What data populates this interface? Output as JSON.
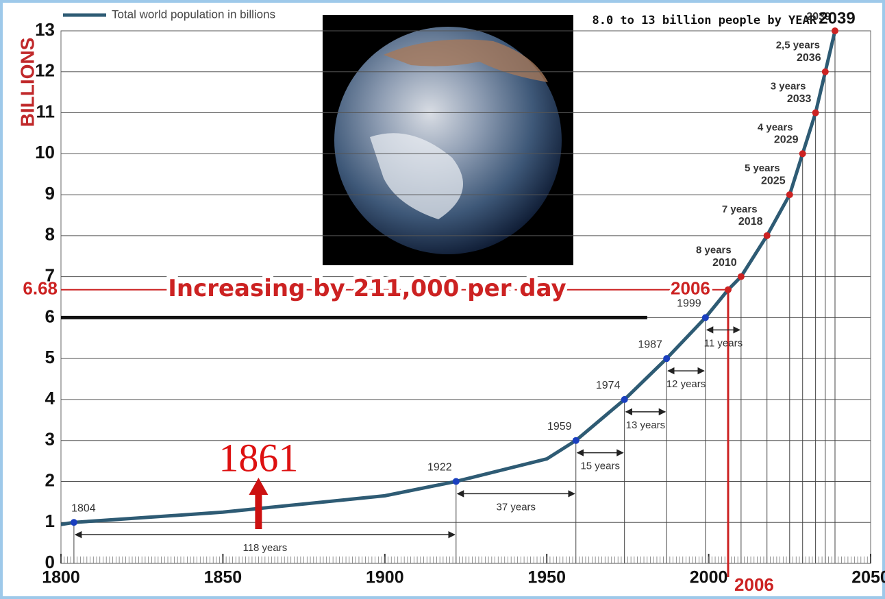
{
  "chart_data": {
    "type": "line",
    "title": "8.0 to 13 billion people by YEAR",
    "ylabel": "BILLIONS",
    "xlim": [
      1800,
      2050
    ],
    "ylim": [
      0,
      13
    ],
    "xticks": [
      1800,
      1850,
      1900,
      1950,
      2000,
      2050
    ],
    "yticks": [
      0,
      1,
      2,
      3,
      4,
      5,
      6,
      7,
      8,
      9,
      10,
      11,
      12,
      13
    ],
    "grid": true,
    "legend": "top-left",
    "series": [
      {
        "name": "Total world population in billions",
        "color": "#2e5b74",
        "x": [
          1800,
          1804,
          1850,
          1900,
          1922,
          1950,
          1959,
          1974,
          1987,
          1999,
          2006,
          2010,
          2018,
          2025,
          2029,
          2033,
          2036,
          2039
        ],
        "values": [
          0.95,
          1,
          1.25,
          1.65,
          2,
          2.55,
          3,
          4,
          5,
          6,
          6.68,
          7,
          8,
          9,
          10,
          11,
          12,
          13
        ],
        "marker_colors": [
          null,
          "#1a3fbf",
          null,
          null,
          "#1a3fbf",
          null,
          "#1a3fbf",
          "#1a3fbf",
          "#1a3fbf",
          "#1a3fbf",
          "#cc2222",
          "#cc2222",
          "#cc2222",
          "#cc2222",
          "#cc2222",
          "#cc2222",
          "#cc2222",
          "#cc2222"
        ]
      }
    ],
    "intervals": [
      {
        "label": "118 years",
        "from": 1,
        "to": 4
      },
      {
        "label": "37 years",
        "from": 4,
        "to": 6
      },
      {
        "label": "15 years",
        "from": 6,
        "to": 7
      },
      {
        "label": "13 years",
        "from": 7,
        "to": 8
      },
      {
        "label": "12 years",
        "from": 8,
        "to": 9
      },
      {
        "label": "11 years",
        "from": 9,
        "to": 11
      },
      {
        "label": "8 years",
        "from": 11,
        "to": 12
      },
      {
        "label": "7 years",
        "from": 12,
        "to": 13
      },
      {
        "label": "5 years",
        "from": 13,
        "to": 14
      },
      {
        "label": "4 years",
        "from": 14,
        "to": 15
      },
      {
        "label": "3 years",
        "from": 15,
        "to": 16
      },
      {
        "label": "2,5 years",
        "from": 16,
        "to": 17
      }
    ],
    "highlight": {
      "text": "Increasing by 211,000 per day",
      "point": 10,
      "color": "#cc2222"
    },
    "callout": 1861
  }
}
